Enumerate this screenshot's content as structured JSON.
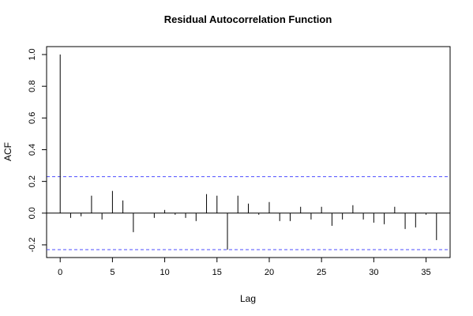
{
  "chart_data": {
    "type": "bar",
    "title": "Residual Autocorrelation Function",
    "xlabel": "Lag",
    "ylabel": "ACF",
    "xlim": [
      -1.3,
      37.3
    ],
    "ylim": [
      -0.28,
      1.05
    ],
    "x_ticks": [
      0,
      5,
      10,
      15,
      20,
      25,
      30,
      35
    ],
    "y_ticks": [
      -0.2,
      0.0,
      0.2,
      0.4,
      0.6,
      0.8,
      1.0
    ],
    "x_tick_labels": [
      "0",
      "5",
      "10",
      "15",
      "20",
      "25",
      "30",
      "35"
    ],
    "y_tick_labels": [
      "-0.2",
      "0.0",
      "0.2",
      "0.4",
      "0.6",
      "0.8",
      "1.0"
    ],
    "confidence_bounds": [
      0.23,
      -0.23
    ],
    "colors": {
      "bars": "#000000",
      "bounds": "#4d4dff",
      "zero_line": "#000000"
    },
    "x": [
      0,
      1,
      2,
      3,
      4,
      5,
      6,
      7,
      8,
      9,
      10,
      11,
      12,
      13,
      14,
      15,
      16,
      17,
      18,
      19,
      20,
      21,
      22,
      23,
      24,
      25,
      26,
      27,
      28,
      29,
      30,
      31,
      32,
      33,
      34,
      35,
      36
    ],
    "values": [
      1.0,
      -0.03,
      -0.02,
      0.11,
      -0.04,
      0.14,
      0.08,
      -0.12,
      0.0,
      -0.03,
      0.02,
      -0.01,
      -0.03,
      -0.05,
      0.12,
      0.11,
      -0.23,
      0.11,
      0.06,
      -0.01,
      0.07,
      -0.05,
      -0.05,
      0.04,
      -0.04,
      0.04,
      -0.08,
      -0.04,
      0.05,
      -0.04,
      -0.06,
      -0.07,
      0.04,
      -0.1,
      -0.09,
      -0.01,
      -0.17
    ]
  }
}
